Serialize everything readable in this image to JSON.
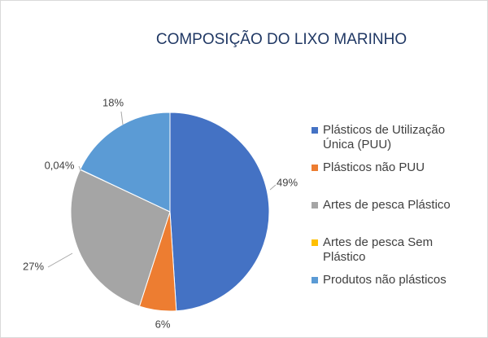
{
  "chart_data": {
    "type": "pie",
    "title": "COMPOSIÇÃO DO LIXO MARINHO",
    "categories": [
      "Plásticos de Utilização Única (PUU)",
      "Plásticos não PUU",
      "Artes de pesca Plástico",
      "Artes de pesca  Sem Plástico",
      "Produtos não plásticos"
    ],
    "values": [
      49,
      6,
      27,
      0.04,
      18
    ],
    "value_labels": [
      "49%",
      "6%",
      "27%",
      "0,04%",
      "18%"
    ],
    "colors": [
      "#4472c4",
      "#ed7d31",
      "#a5a5a5",
      "#ffc000",
      "#5b9bd5"
    ],
    "legend": "right"
  }
}
